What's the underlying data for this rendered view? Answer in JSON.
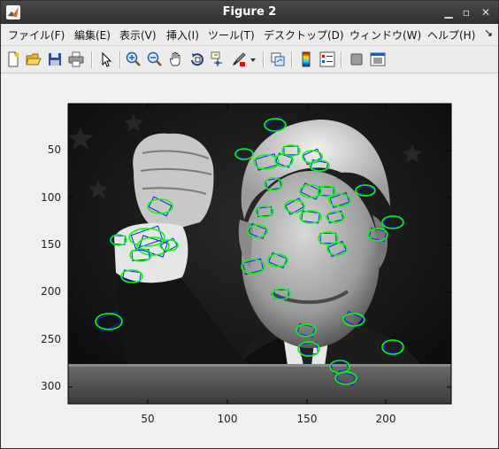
{
  "window": {
    "title": "Figure 2"
  },
  "menu": {
    "file": "ファイル(F)",
    "edit": "編集(E)",
    "view": "表示(V)",
    "insert": "挿入(I)",
    "tools": "ツール(T)",
    "desktop": "デスクトップ(D)",
    "window": "ウィンドウ(W)",
    "help": "ヘルプ(H)",
    "overflow": "↘"
  },
  "toolbar_icons": [
    "new-figure-icon",
    "open-file-icon",
    "save-icon",
    "print-icon",
    "pointer-icon",
    "zoom-in-icon",
    "zoom-out-icon",
    "pan-icon",
    "rotate-3d-icon",
    "data-cursor-icon",
    "brush-icon",
    "brush-dropdown-icon",
    "link-plot-icon",
    "insert-colorbar-icon",
    "insert-legend-icon",
    "hide-plot-tools-icon",
    "show-plot-tools-icon"
  ],
  "axes": {
    "xticks": [
      "50",
      "100",
      "150",
      "200"
    ],
    "yticks": [
      "50",
      "100",
      "150",
      "200",
      "250",
      "300"
    ]
  },
  "colors": {
    "feature_circle": "#00ff00",
    "feature_box": "#1a1aff"
  }
}
